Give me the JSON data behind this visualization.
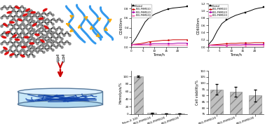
{
  "line_chart1": {
    "xlabel": "Time/h",
    "ylabel": "OD600nm",
    "legend": [
      "Control",
      "PEG-PHMG10",
      "PEG-PHMG20",
      "PEG-PHMG30"
    ],
    "colors": [
      "black",
      "#cc0000",
      "#aa00aa",
      "#ff69b4"
    ],
    "markers": [
      "s",
      "o",
      "D",
      "^"
    ],
    "x": [
      0,
      2,
      4,
      6,
      8,
      10,
      12,
      14,
      16,
      18,
      20,
      22,
      24
    ],
    "y_control": [
      0.05,
      0.18,
      0.35,
      0.52,
      0.62,
      0.68,
      0.72,
      0.76,
      0.79,
      0.81,
      0.82,
      0.83,
      0.84
    ],
    "y_10": [
      0.05,
      0.06,
      0.07,
      0.09,
      0.11,
      0.12,
      0.13,
      0.14,
      0.14,
      0.15,
      0.15,
      0.15,
      0.15
    ],
    "y_20": [
      0.05,
      0.05,
      0.05,
      0.06,
      0.06,
      0.07,
      0.07,
      0.07,
      0.07,
      0.07,
      0.08,
      0.08,
      0.08
    ],
    "y_30": [
      0.05,
      0.04,
      0.04,
      0.04,
      0.04,
      0.04,
      0.04,
      0.04,
      0.04,
      0.04,
      0.04,
      0.04,
      0.04
    ],
    "ylim": [
      0,
      0.9
    ],
    "xlim": [
      0,
      24
    ]
  },
  "line_chart2": {
    "xlabel": "Time/h",
    "ylabel": "OD600nm",
    "legend": [
      "Control",
      "PEG-PHMG10",
      "PEG-PHMG20",
      "PEG-PHMG30"
    ],
    "colors": [
      "black",
      "#cc0000",
      "#aa00aa",
      "#ff69b4"
    ],
    "markers": [
      "s",
      "o",
      "D",
      "^"
    ],
    "x": [
      0,
      2,
      4,
      6,
      8,
      10,
      12,
      14,
      16,
      18,
      20,
      22,
      24
    ],
    "y_control": [
      0.05,
      0.2,
      0.45,
      0.65,
      0.75,
      0.82,
      0.88,
      0.92,
      0.96,
      1.0,
      1.05,
      1.08,
      1.1
    ],
    "y_10": [
      0.05,
      0.06,
      0.07,
      0.08,
      0.09,
      0.1,
      0.1,
      0.11,
      0.11,
      0.11,
      0.12,
      0.12,
      0.12
    ],
    "y_20": [
      0.05,
      0.05,
      0.05,
      0.05,
      0.05,
      0.06,
      0.06,
      0.06,
      0.07,
      0.07,
      0.07,
      0.07,
      0.07
    ],
    "y_30": [
      0.05,
      0.04,
      0.04,
      0.04,
      0.04,
      0.04,
      0.04,
      0.04,
      0.04,
      0.04,
      0.04,
      0.04,
      0.04
    ],
    "ylim": [
      0,
      1.2
    ],
    "xlim": [
      0,
      24
    ]
  },
  "bar_chart1": {
    "categories": [
      "Triton-X 100",
      "PEG-PHMG10",
      "PEG-PHMG20",
      "PEG-PHMG30"
    ],
    "values": [
      100,
      2.5,
      1.5,
      1.0
    ],
    "errors": [
      2,
      0.3,
      0.3,
      0.3
    ],
    "ylabel": "Hemolysis/%",
    "color": "#c0c0c0",
    "hatch": "///",
    "ylim": [
      0,
      115
    ]
  },
  "bar_chart2": {
    "categories": [
      "PEG-PHMG10",
      "PEG-PHMG20",
      "PEG-PHMG30"
    ],
    "values": [
      95,
      93,
      90
    ],
    "errors": [
      4,
      4,
      5
    ],
    "ylabel": "Cell viability/%",
    "color": "#c0c0c0",
    "hatch": "///",
    "ylim": [
      75,
      110
    ]
  }
}
